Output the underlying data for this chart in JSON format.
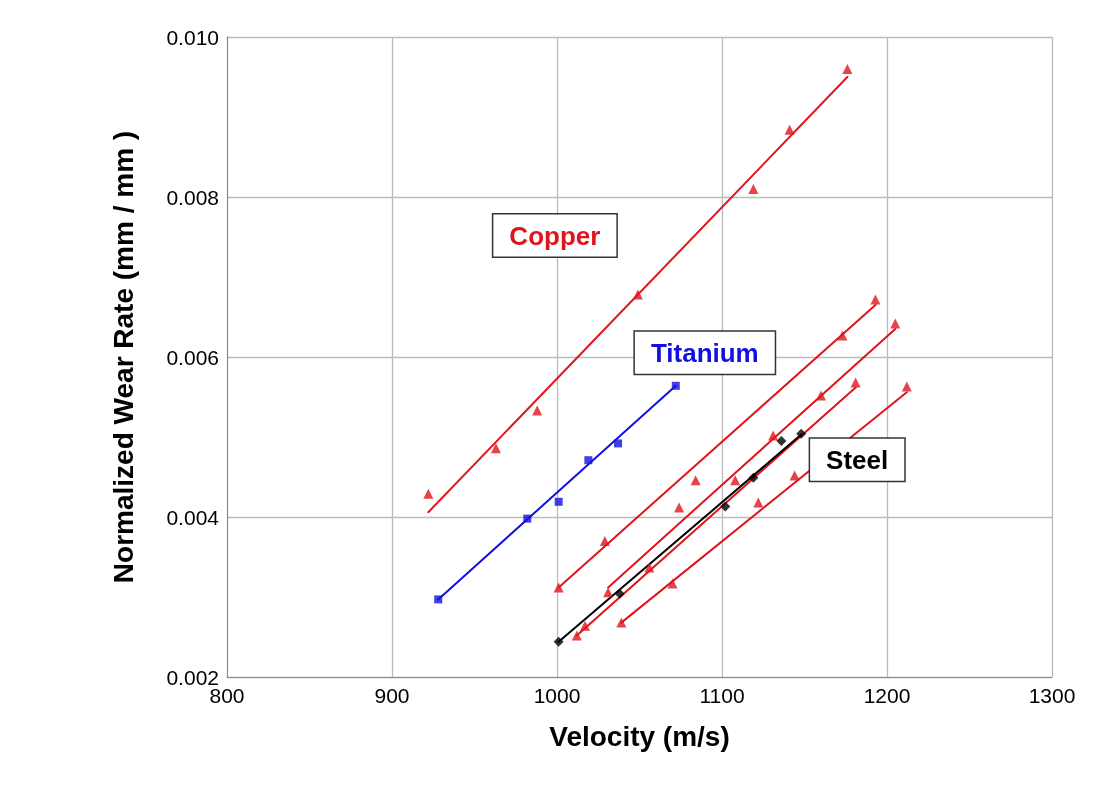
{
  "chart_data": {
    "type": "scatter",
    "xlabel": "Velocity (m/s)",
    "ylabel": "Normalized Wear Rate (mm / mm )",
    "xlim": [
      800,
      1300
    ],
    "xticks": [
      800,
      900,
      1000,
      1100,
      1200,
      1300
    ],
    "ylim": [
      0.002,
      0.01
    ],
    "yticks": [
      {
        "value": 0.002,
        "label": "0.002"
      },
      {
        "value": 0.004,
        "label": "0.004"
      },
      {
        "value": 0.006,
        "label": "0.006"
      },
      {
        "value": 0.008,
        "label": "0.008"
      },
      {
        "value": 0.01,
        "label": "0.010"
      }
    ],
    "grid": true,
    "legend": false,
    "series": [
      {
        "name": "Copper",
        "marker": "triangle",
        "color": "#e0141c",
        "x": [
          922,
          963,
          988,
          1049,
          1119,
          1141,
          1176
        ],
        "values": [
          0.00429,
          0.00486,
          0.00533,
          0.00678,
          0.0081,
          0.00884,
          0.0096
        ]
      },
      {
        "type": "line",
        "marker": "none",
        "color": "#e0141c",
        "x": [
          922,
          1176
        ],
        "values": [
          0.00406,
          0.0095
        ]
      },
      {
        "marker": "triangle",
        "color": "#e0141c",
        "x": [
          1001,
          1029,
          1084,
          1173,
          1193
        ],
        "values": [
          0.00312,
          0.0037,
          0.00446,
          0.00627,
          0.00672
        ]
      },
      {
        "type": "line",
        "marker": "none",
        "color": "#e0141c",
        "x": [
          1001,
          1193
        ],
        "values": [
          0.00312,
          0.00665
        ]
      },
      {
        "marker": "triangle",
        "color": "#e0141c",
        "x": [
          1031,
          1074,
          1131,
          1160,
          1205
        ],
        "values": [
          0.00306,
          0.00412,
          0.00502,
          0.00552,
          0.00642
        ]
      },
      {
        "type": "line",
        "marker": "none",
        "color": "#e0141c",
        "x": [
          1031,
          1205
        ],
        "values": [
          0.00312,
          0.00635
        ]
      },
      {
        "marker": "triangle",
        "color": "#e0141c",
        "x": [
          1012,
          1017,
          1056,
          1108,
          1181
        ],
        "values": [
          0.00252,
          0.00264,
          0.00337,
          0.00446,
          0.00568
        ]
      },
      {
        "type": "line",
        "marker": "none",
        "color": "#e0141c",
        "x": [
          1012,
          1181
        ],
        "values": [
          0.00252,
          0.00562
        ]
      },
      {
        "marker": "triangle",
        "color": "#e0141c",
        "x": [
          1039,
          1070,
          1122,
          1144,
          1212
        ],
        "values": [
          0.00268,
          0.00317,
          0.00418,
          0.00452,
          0.00563
        ]
      },
      {
        "type": "line",
        "marker": "none",
        "color": "#e0141c",
        "x": [
          1039,
          1212
        ],
        "values": [
          0.00268,
          0.00556
        ]
      },
      {
        "name": "Titanium",
        "marker": "square",
        "color": "#1010e0",
        "x": [
          928,
          982,
          1001,
          1019,
          1037,
          1072
        ],
        "values": [
          0.00297,
          0.00398,
          0.00419,
          0.00471,
          0.00492,
          0.00564
        ]
      },
      {
        "type": "line",
        "marker": "none",
        "color": "#1010e0",
        "x": [
          928,
          1072
        ],
        "values": [
          0.00297,
          0.00564
        ]
      },
      {
        "name": "Steel",
        "marker": "diamond",
        "color": "#000000",
        "x": [
          1001,
          1038,
          1102,
          1119,
          1136,
          1148
        ],
        "values": [
          0.00244,
          0.00304,
          0.00413,
          0.00449,
          0.00495,
          0.00504
        ]
      },
      {
        "type": "line",
        "marker": "none",
        "color": "#000000",
        "x": [
          1001,
          1148
        ],
        "values": [
          0.00244,
          0.00503
        ]
      }
    ]
  }
}
